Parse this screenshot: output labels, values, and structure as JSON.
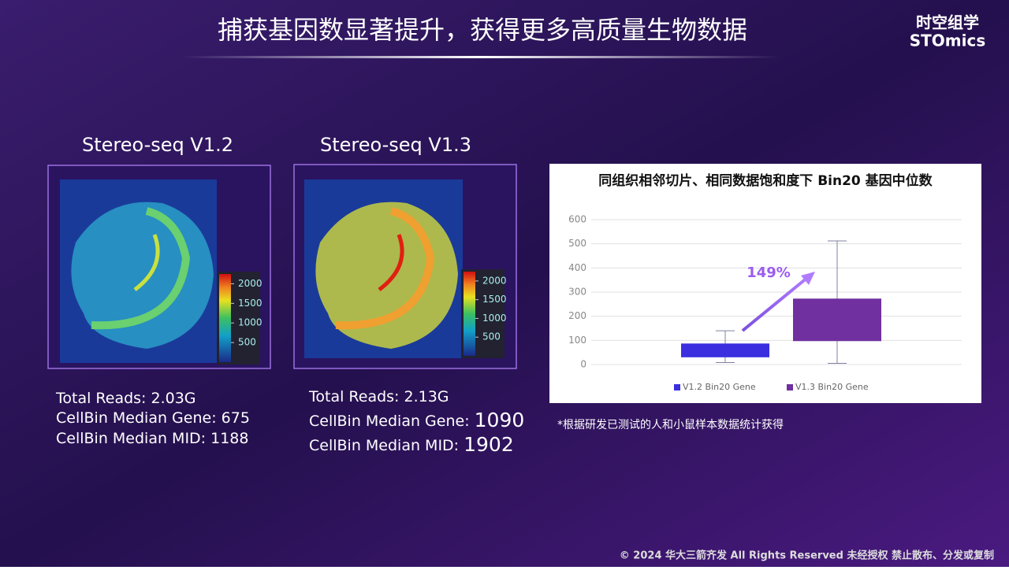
{
  "header": {
    "title": "捕获基因数显著提升，获得更多高质量生物数据",
    "logo_cn": "时空组学",
    "logo_en": "STOmics"
  },
  "panels": [
    {
      "title": "Stereo-seq V1.2",
      "clim": [
        0,
        2250
      ],
      "colorbar_ticks": [
        500,
        1000,
        1500,
        2000
      ],
      "stats": [
        {
          "label": "Total Reads: 2.03G"
        },
        {
          "label": "CellBin Median Gene: ",
          "value": 675
        },
        {
          "label": "CellBin Median MID: ",
          "value": 1188
        }
      ]
    },
    {
      "title": "Stereo-seq V1.3",
      "clim": [
        0,
        2250
      ],
      "colorbar_ticks": [
        500,
        1000,
        1500,
        2000
      ],
      "stats": [
        {
          "label": "Total Reads: 2.13G"
        },
        {
          "label": "CellBin Median Gene: ",
          "value": 1090
        },
        {
          "label": "CellBin Median MID: ",
          "value": 1902
        }
      ]
    }
  ],
  "chart_data": {
    "type": "box",
    "title": "同组织相邻切片、相同数据饱和度下 Bin20 基因中位数",
    "series": [
      {
        "name": "V1.2 Bin20 Gene",
        "color": "#3b2fe0",
        "min": 8,
        "q1": 30,
        "q3": 87,
        "max": 140
      },
      {
        "name": "V1.3 Bin20 Gene",
        "color": "#7030a0",
        "min": 5,
        "q1": 97,
        "q3": 273,
        "max": 512
      }
    ],
    "ylim": [
      0,
      600
    ],
    "yticks": [
      0,
      100,
      200,
      300,
      400,
      500,
      600
    ],
    "grid": true,
    "annotation": "149%"
  },
  "note": "*根据研发已测试的人和小鼠样本数据统计获得",
  "footer": "© 2024 华大三箭齐发 All Rights Reserved 未经授权  禁止散布、分发或复制"
}
